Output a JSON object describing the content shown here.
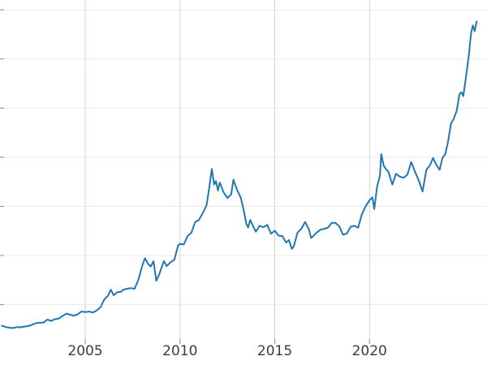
{
  "chart_data": {
    "type": "line",
    "title": "",
    "xlabel": "",
    "ylabel": "",
    "legend": false,
    "grid": true,
    "line_color": "#1f77b4",
    "vertical_grid_color": "#d2d2d2",
    "horizontal_grid_color": "#eaeaea",
    "tick_color": "#8a8a8a",
    "tick_label_color": "#3d3d3d",
    "xlim": [
      2000.5,
      2026.2
    ],
    "ylim": [
      150,
      3600
    ],
    "x_ticks": [
      2005,
      2010,
      2015,
      2020
    ],
    "x_tick_labels": [
      "2005",
      "2010",
      "2015",
      "2020"
    ],
    "y_gridlines": [
      500,
      1000,
      1500,
      2000,
      2500,
      3000,
      3500
    ],
    "series": [
      {
        "name": "value",
        "points": [
          [
            2000.6,
            285
          ],
          [
            2000.8,
            272
          ],
          [
            2001.0,
            265
          ],
          [
            2001.2,
            262
          ],
          [
            2001.4,
            272
          ],
          [
            2001.6,
            270
          ],
          [
            2001.8,
            278
          ],
          [
            2002.0,
            282
          ],
          [
            2002.2,
            296
          ],
          [
            2002.4,
            312
          ],
          [
            2002.6,
            316
          ],
          [
            2002.8,
            318
          ],
          [
            2003.0,
            348
          ],
          [
            2003.2,
            334
          ],
          [
            2003.4,
            352
          ],
          [
            2003.6,
            358
          ],
          [
            2003.8,
            384
          ],
          [
            2004.0,
            408
          ],
          [
            2004.2,
            398
          ],
          [
            2004.4,
            388
          ],
          [
            2004.6,
            402
          ],
          [
            2004.8,
            430
          ],
          [
            2005.0,
            424
          ],
          [
            2005.2,
            430
          ],
          [
            2005.4,
            420
          ],
          [
            2005.6,
            440
          ],
          [
            2005.8,
            472
          ],
          [
            2006.0,
            552
          ],
          [
            2006.2,
            592
          ],
          [
            2006.35,
            652
          ],
          [
            2006.5,
            596
          ],
          [
            2006.7,
            628
          ],
          [
            2006.9,
            632
          ],
          [
            2007.0,
            652
          ],
          [
            2007.2,
            662
          ],
          [
            2007.4,
            668
          ],
          [
            2007.6,
            662
          ],
          [
            2007.8,
            752
          ],
          [
            2008.0,
            892
          ],
          [
            2008.15,
            972
          ],
          [
            2008.3,
            918
          ],
          [
            2008.45,
            888
          ],
          [
            2008.6,
            942
          ],
          [
            2008.75,
            742
          ],
          [
            2008.9,
            806
          ],
          [
            2009.0,
            862
          ],
          [
            2009.15,
            942
          ],
          [
            2009.3,
            892
          ],
          [
            2009.5,
            932
          ],
          [
            2009.7,
            956
          ],
          [
            2009.9,
            1104
          ],
          [
            2010.0,
            1118
          ],
          [
            2010.2,
            1112
          ],
          [
            2010.4,
            1198
          ],
          [
            2010.6,
            1232
          ],
          [
            2010.8,
            1342
          ],
          [
            2011.0,
            1362
          ],
          [
            2011.2,
            1432
          ],
          [
            2011.4,
            1512
          ],
          [
            2011.55,
            1702
          ],
          [
            2011.68,
            1882
          ],
          [
            2011.8,
            1722
          ],
          [
            2011.9,
            1758
          ],
          [
            2012.0,
            1662
          ],
          [
            2012.1,
            1742
          ],
          [
            2012.3,
            1642
          ],
          [
            2012.5,
            1586
          ],
          [
            2012.7,
            1622
          ],
          [
            2012.82,
            1772
          ],
          [
            2013.0,
            1672
          ],
          [
            2013.2,
            1592
          ],
          [
            2013.35,
            1472
          ],
          [
            2013.5,
            1322
          ],
          [
            2013.6,
            1286
          ],
          [
            2013.7,
            1362
          ],
          [
            2013.9,
            1282
          ],
          [
            2014.0,
            1242
          ],
          [
            2014.2,
            1302
          ],
          [
            2014.4,
            1288
          ],
          [
            2014.6,
            1312
          ],
          [
            2014.8,
            1222
          ],
          [
            2015.0,
            1252
          ],
          [
            2015.2,
            1202
          ],
          [
            2015.4,
            1198
          ],
          [
            2015.6,
            1132
          ],
          [
            2015.75,
            1158
          ],
          [
            2015.9,
            1068
          ],
          [
            2016.0,
            1092
          ],
          [
            2016.2,
            1232
          ],
          [
            2016.4,
            1272
          ],
          [
            2016.6,
            1342
          ],
          [
            2016.8,
            1268
          ],
          [
            2016.92,
            1178
          ],
          [
            2017.0,
            1192
          ],
          [
            2017.2,
            1232
          ],
          [
            2017.4,
            1262
          ],
          [
            2017.6,
            1272
          ],
          [
            2017.8,
            1282
          ],
          [
            2018.0,
            1332
          ],
          [
            2018.2,
            1332
          ],
          [
            2018.4,
            1298
          ],
          [
            2018.6,
            1212
          ],
          [
            2018.8,
            1222
          ],
          [
            2019.0,
            1292
          ],
          [
            2019.2,
            1302
          ],
          [
            2019.4,
            1282
          ],
          [
            2019.6,
            1422
          ],
          [
            2019.8,
            1502
          ],
          [
            2020.0,
            1562
          ],
          [
            2020.15,
            1592
          ],
          [
            2020.25,
            1472
          ],
          [
            2020.4,
            1702
          ],
          [
            2020.55,
            1812
          ],
          [
            2020.62,
            2032
          ],
          [
            2020.75,
            1912
          ],
          [
            2020.9,
            1872
          ],
          [
            2021.0,
            1852
          ],
          [
            2021.2,
            1722
          ],
          [
            2021.4,
            1832
          ],
          [
            2021.6,
            1802
          ],
          [
            2021.8,
            1792
          ],
          [
            2022.0,
            1822
          ],
          [
            2022.2,
            1952
          ],
          [
            2022.4,
            1852
          ],
          [
            2022.6,
            1762
          ],
          [
            2022.8,
            1652
          ],
          [
            2023.0,
            1872
          ],
          [
            2023.2,
            1922
          ],
          [
            2023.35,
            1992
          ],
          [
            2023.5,
            1932
          ],
          [
            2023.7,
            1872
          ],
          [
            2023.85,
            1992
          ],
          [
            2024.0,
            2032
          ],
          [
            2024.15,
            2162
          ],
          [
            2024.3,
            2342
          ],
          [
            2024.45,
            2392
          ],
          [
            2024.6,
            2472
          ],
          [
            2024.75,
            2642
          ],
          [
            2024.85,
            2662
          ],
          [
            2024.95,
            2622
          ],
          [
            2025.05,
            2762
          ],
          [
            2025.15,
            2902
          ],
          [
            2025.25,
            3052
          ],
          [
            2025.35,
            3252
          ],
          [
            2025.45,
            3342
          ],
          [
            2025.55,
            3282
          ],
          [
            2025.65,
            3382
          ]
        ]
      }
    ]
  }
}
